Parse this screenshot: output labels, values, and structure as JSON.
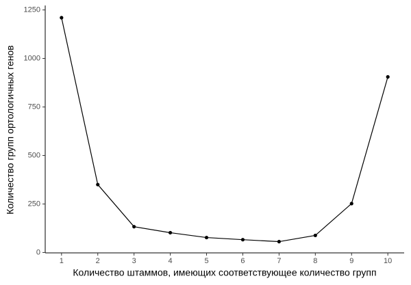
{
  "chart_data": {
    "type": "line",
    "x_label": "Количество штаммов, имеющих соответствующее количество групп",
    "y_label": "Количество групп ортологичных генов",
    "x": [
      1,
      2,
      3,
      4,
      5,
      6,
      7,
      8,
      9,
      10
    ],
    "values": [
      1210,
      350,
      133,
      102,
      77,
      66,
      56,
      88,
      252,
      905
    ],
    "color": "#000000",
    "xlim": [
      0.55,
      10.45
    ],
    "xticks": [
      1,
      2,
      3,
      4,
      5,
      6,
      7,
      8,
      9,
      10
    ],
    "ylim": [
      -2,
      1273
    ],
    "yticks": [
      0,
      250,
      500,
      750,
      1000,
      1250
    ]
  }
}
